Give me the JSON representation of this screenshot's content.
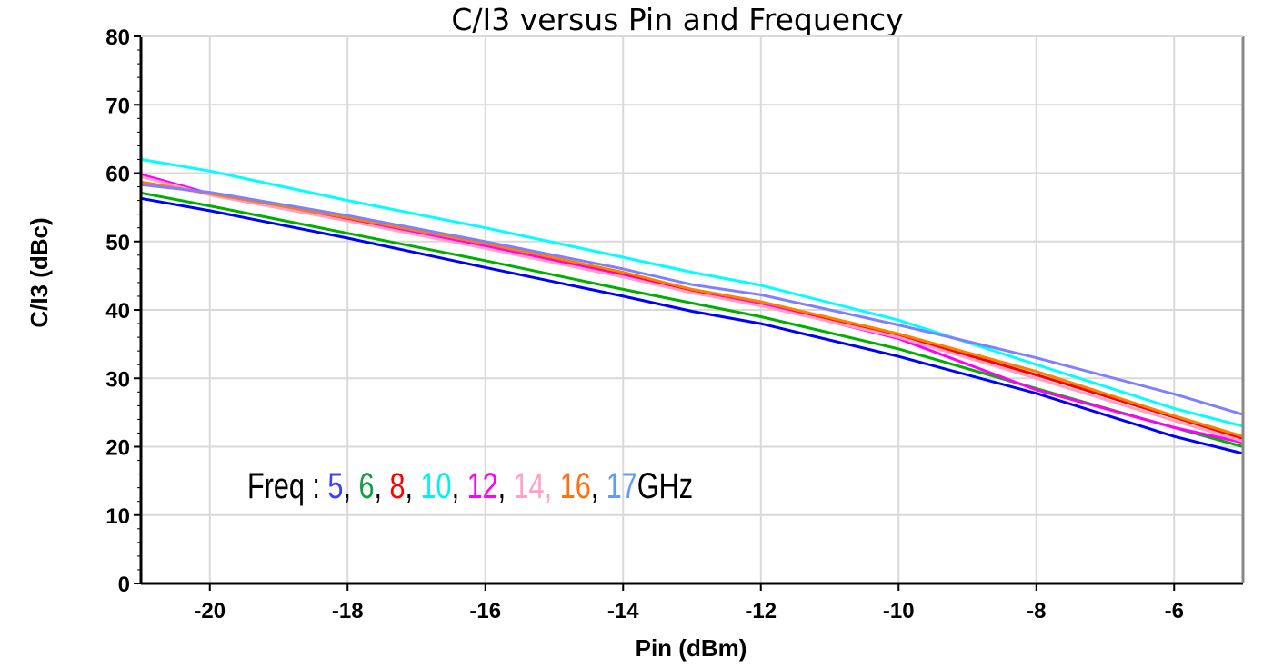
{
  "chart_data": {
    "type": "line",
    "title": "C/I3 versus Pin and Frequency",
    "xlabel": "Pin (dBm)",
    "ylabel": "C/I3 (dBc)",
    "xlim": [
      -21,
      -5
    ],
    "ylim": [
      0,
      80
    ],
    "xticks": [
      -20,
      -18,
      -16,
      -14,
      -12,
      -10,
      -8,
      -6
    ],
    "yticks": [
      0,
      10,
      20,
      30,
      40,
      50,
      60,
      70,
      80
    ],
    "grid": true,
    "x": [
      -21,
      -20,
      -18,
      -16,
      -14,
      -13,
      -12,
      -10,
      -8,
      -6,
      -5
    ],
    "series": [
      {
        "freq": "5",
        "color": "#0000ff",
        "legend_color": "#4040ff",
        "values": [
          56.3,
          54.5,
          50.5,
          46.2,
          42.0,
          39.8,
          38.0,
          33.2,
          27.8,
          21.5,
          19.0
        ]
      },
      {
        "freq": "6",
        "color": "#00b000",
        "legend_color": "#10a040",
        "values": [
          57.1,
          55.2,
          51.2,
          47.2,
          43.0,
          41.0,
          39.0,
          34.3,
          28.5,
          22.8,
          20.0
        ]
      },
      {
        "freq": "8",
        "color": "#ff0000",
        "legend_color": "#ff0000",
        "values": [
          58.7,
          57.0,
          53.3,
          49.3,
          45.3,
          42.8,
          41.0,
          36.3,
          30.5,
          24.3,
          21.2
        ]
      },
      {
        "freq": "10",
        "color": "#00ffff",
        "legend_color": "#00f0f0",
        "values": [
          62.0,
          60.3,
          56.0,
          52.0,
          47.7,
          45.5,
          43.6,
          38.5,
          32.0,
          25.6,
          23.0
        ]
      },
      {
        "freq": "12",
        "color": "#ff00ff",
        "legend_color": "#ff00ff",
        "values": [
          59.8,
          57.0,
          53.5,
          49.3,
          45.0,
          42.5,
          40.8,
          35.8,
          28.3,
          22.8,
          20.6
        ]
      },
      {
        "freq": "14",
        "color": "#ffa0c8",
        "legend_color": "#ffa0c8",
        "values": [
          59.5,
          56.8,
          53.0,
          49.0,
          44.8,
          42.5,
          40.6,
          36.0,
          30.0,
          23.8,
          20.8
        ]
      },
      {
        "freq": "16",
        "color": "#ff8000",
        "legend_color": "#ff7010",
        "values": [
          58.7,
          57.0,
          53.5,
          49.7,
          45.5,
          43.0,
          41.2,
          36.5,
          31.0,
          24.5,
          21.5
        ]
      },
      {
        "freq": "17",
        "color": "#8080ff",
        "legend_color": "#6699ff",
        "values": [
          58.3,
          57.2,
          53.8,
          50.0,
          46.0,
          43.7,
          42.2,
          37.8,
          33.0,
          27.7,
          24.7
        ]
      }
    ],
    "legend": {
      "prefix": "Freq : ",
      "separator": ", ",
      "suffix": "GHz",
      "placement": "bottom-left"
    }
  }
}
